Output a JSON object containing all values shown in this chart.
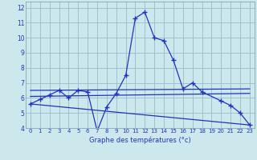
{
  "xlabel": "Graphe des températures (°c)",
  "background_color": "#cce8ec",
  "line_color": "#2233bb",
  "grid_color": "#99bbcc",
  "xlim": [
    -0.5,
    23.5
  ],
  "ylim": [
    4,
    12.4
  ],
  "xtick_labels": [
    "0",
    "1",
    "2",
    "3",
    "4",
    "5",
    "6",
    "7",
    "8",
    "9",
    "10",
    "11",
    "12",
    "13",
    "14",
    "15",
    "16",
    "17",
    "18",
    "19",
    "20",
    "21",
    "22",
    "23"
  ],
  "xtick_pos": [
    0,
    1,
    2,
    3,
    4,
    5,
    6,
    7,
    8,
    9,
    10,
    11,
    12,
    13,
    14,
    15,
    16,
    17,
    18,
    19,
    20,
    21,
    22,
    23
  ],
  "ytick_labels": [
    "4",
    "5",
    "6",
    "7",
    "8",
    "9",
    "10",
    "11",
    "12"
  ],
  "ytick_pos": [
    4,
    5,
    6,
    7,
    8,
    9,
    10,
    11,
    12
  ],
  "series_main": {
    "x": [
      0,
      1,
      2,
      3,
      4,
      5,
      6,
      7,
      8,
      9,
      10,
      11,
      12,
      13,
      14,
      15,
      16,
      17,
      18,
      20,
      21,
      22,
      23
    ],
    "y": [
      5.6,
      5.9,
      6.2,
      6.5,
      6.0,
      6.5,
      6.4,
      3.8,
      5.4,
      6.3,
      7.5,
      11.3,
      11.7,
      10.0,
      9.8,
      8.5,
      6.6,
      7.0,
      6.4,
      5.8,
      5.5,
      5.0,
      4.2
    ]
  },
  "series_line1": {
    "x": [
      0,
      23
    ],
    "y": [
      5.6,
      4.2
    ]
  },
  "series_line2": {
    "x": [
      0,
      23
    ],
    "y": [
      6.5,
      6.6
    ]
  },
  "series_line3": {
    "x": [
      0,
      23
    ],
    "y": [
      6.1,
      6.3
    ]
  }
}
